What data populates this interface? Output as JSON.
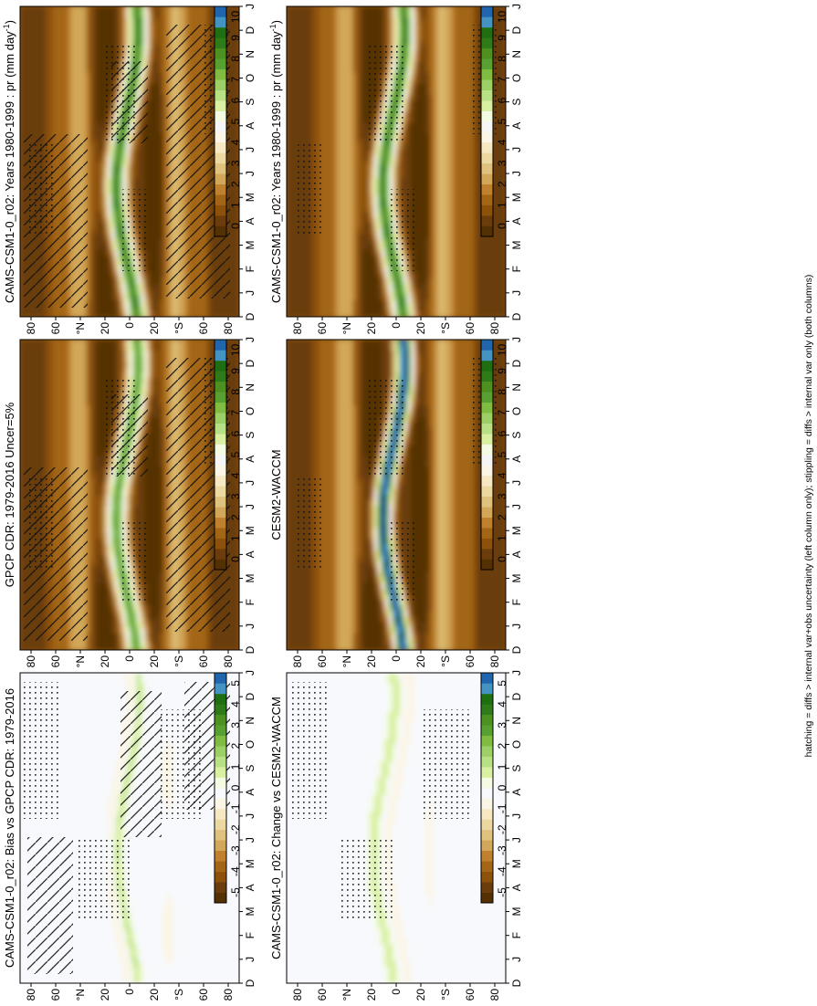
{
  "footnote": "hatching = diffs > internal var+obs uncertainty (left column only); stippling = diffs > internal var only (both columns)",
  "palettes": {
    "abs": [
      "#543005",
      "#6b3d0c",
      "#8c510a",
      "#a36617",
      "#bf812d",
      "#d2a759",
      "#dfc27d",
      "#ecd9a2",
      "#f6e8c3",
      "#fbf5e6",
      "#f5f5f5",
      "#f4fbe3",
      "#d9f0a3",
      "#b8e186",
      "#9ccf66",
      "#7fbc41",
      "#58a032",
      "#4d9221",
      "#2f7b1a",
      "#1f6e12",
      "#4393c3",
      "#2166ac"
    ],
    "diff": [
      "#543005",
      "#6b3d0c",
      "#8c510a",
      "#a36617",
      "#bf812d",
      "#d2a759",
      "#dfc27d",
      "#ecd9a2",
      "#f6e8c3",
      "#fbf5e6",
      "#f7f9fc",
      "#f4fbe3",
      "#d9f0a3",
      "#b8e186",
      "#9ccf66",
      "#7fbc41",
      "#58a032",
      "#4d9221",
      "#2f7b1a",
      "#1f6e12",
      "#4393c3",
      "#2166ac"
    ]
  },
  "colorbars": {
    "abs": [
      "10",
      "9",
      "8",
      "7",
      "6",
      "5",
      "4",
      "3",
      "2",
      "1",
      "0"
    ],
    "diff": [
      "5",
      "4",
      "3",
      "2",
      "1",
      "0",
      "-1",
      "-2",
      "-3",
      "-4",
      "-5"
    ]
  },
  "lat_ticks": [
    "80",
    "60",
    "°N",
    "20",
    "0",
    "20",
    "°S",
    "60",
    "80"
  ],
  "month_ticks": [
    "D",
    "J",
    "F",
    "M",
    "A",
    "M",
    "J",
    "J",
    "A",
    "S",
    "O",
    "N",
    "D",
    "J"
  ],
  "chart_data": [
    {
      "id": "p1",
      "type": "heatmap",
      "title": "CAMS-CSM1-0_r02: Years 1980-1999 : pr (mm day",
      "title_sup": "-1",
      "title_tail": ")",
      "x": "month (seasonal cycle, D to J)",
      "y": "latitude 90S-90N",
      "colorbar_range": [
        0,
        10
      ],
      "itcz_peak_mm_day": 8,
      "hatching": true,
      "stippling": true
    },
    {
      "id": "p2",
      "type": "heatmap",
      "title": "CAMS-CSM1-0_r02: Years 1980-1999 : pr (mm day",
      "title_sup": "-1",
      "title_tail": ")",
      "colorbar_range": [
        0,
        10
      ],
      "itcz_peak_mm_day": 8,
      "hatching": false,
      "stippling": true
    },
    {
      "id": "p3",
      "type": "heatmap",
      "title": "GPCP CDR: 1979-2016 Uncer=5%",
      "colorbar_range": [
        0,
        10
      ],
      "itcz_peak_mm_day": 7,
      "hatching": true,
      "stippling": true
    },
    {
      "id": "p4",
      "type": "heatmap",
      "title": "CESM2-WACCM",
      "colorbar_range": [
        0,
        10
      ],
      "itcz_peak_mm_day": 10,
      "hatching": false,
      "stippling": true
    },
    {
      "id": "p5",
      "type": "heatmap",
      "title": "CAMS-CSM1-0_r02: Bias vs GPCP CDR: 1979-2016",
      "colorbar_range": [
        -5,
        5
      ],
      "hatching": true,
      "stippling": true
    },
    {
      "id": "p6",
      "type": "heatmap",
      "title": "CAMS-CSM1-0_r02: Change vs CESM2-WACCM",
      "colorbar_range": [
        -5,
        5
      ],
      "hatching": false,
      "stippling": true
    }
  ]
}
